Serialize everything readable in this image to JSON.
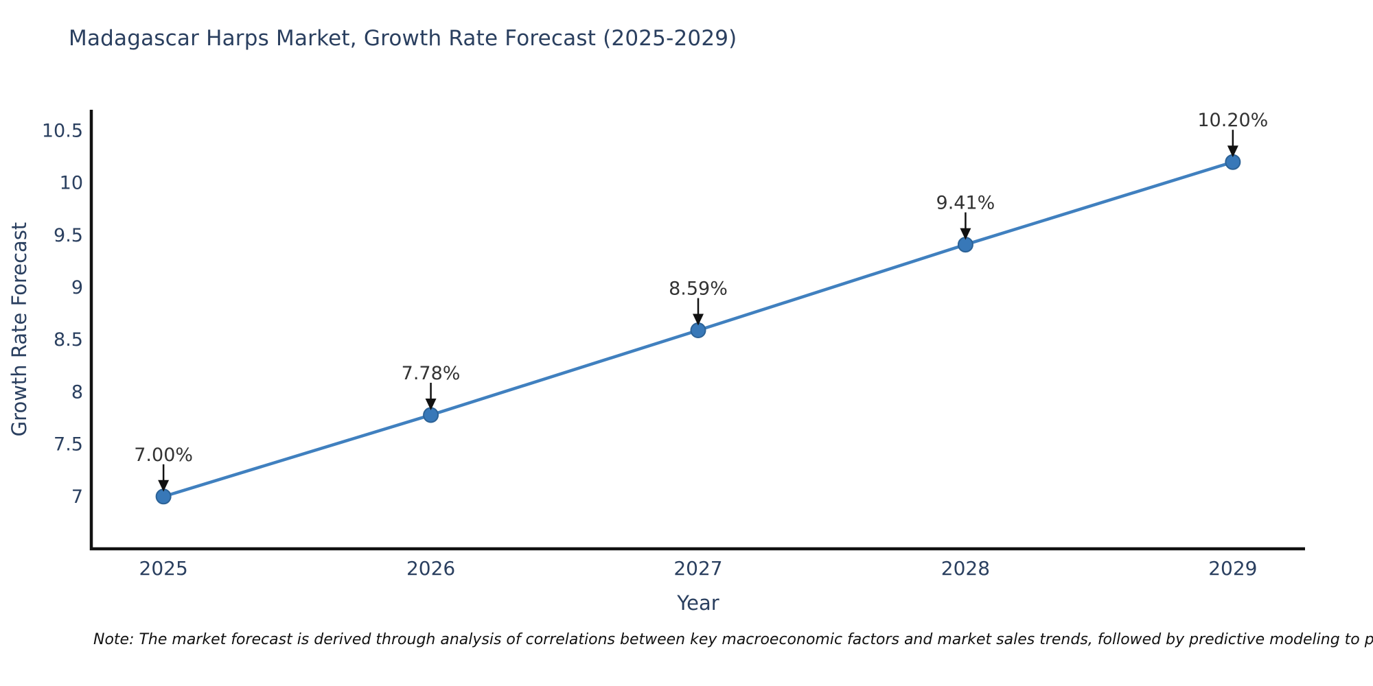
{
  "page": {
    "background": "#ffffff"
  },
  "chart_data": {
    "type": "line",
    "title": "Madagascar Harps Market, Growth Rate Forecast (2025-2029)",
    "xlabel": "Year",
    "ylabel": "Growth Rate Forecast",
    "x": [
      2025,
      2026,
      2027,
      2028,
      2029
    ],
    "values": [
      7.0,
      7.78,
      8.59,
      9.41,
      10.2
    ],
    "point_labels": [
      "7.00%",
      "7.78%",
      "8.59%",
      "9.41%",
      "10.20%"
    ],
    "xtick_labels": [
      "2025",
      "2026",
      "2027",
      "2028",
      "2029"
    ],
    "yticks": [
      7,
      7.5,
      8,
      8.5,
      9,
      9.5,
      10,
      10.5
    ],
    "ytick_labels": [
      "7",
      "7.5",
      "8",
      "8.5",
      "9",
      "9.5",
      "10",
      "10.5"
    ],
    "xlim": [
      2024.73,
      2029.27
    ],
    "ylim": [
      6.5,
      10.7
    ],
    "grid": false,
    "legend": "none",
    "line_color": "#4080bf",
    "marker_color": "#3878b8",
    "marker_edge_color": "#2c6296",
    "axis_color": "#111111",
    "arrow_color": "#111111",
    "point_label_color": "#333333",
    "tick_color": "#2a3f5f",
    "title_color": "#2a3f5f"
  },
  "note": {
    "text": "Note: The market forecast is derived through analysis of correlations between key macroeconomic factors and market sales trends, followed by predictive modeling to project future sal"
  }
}
